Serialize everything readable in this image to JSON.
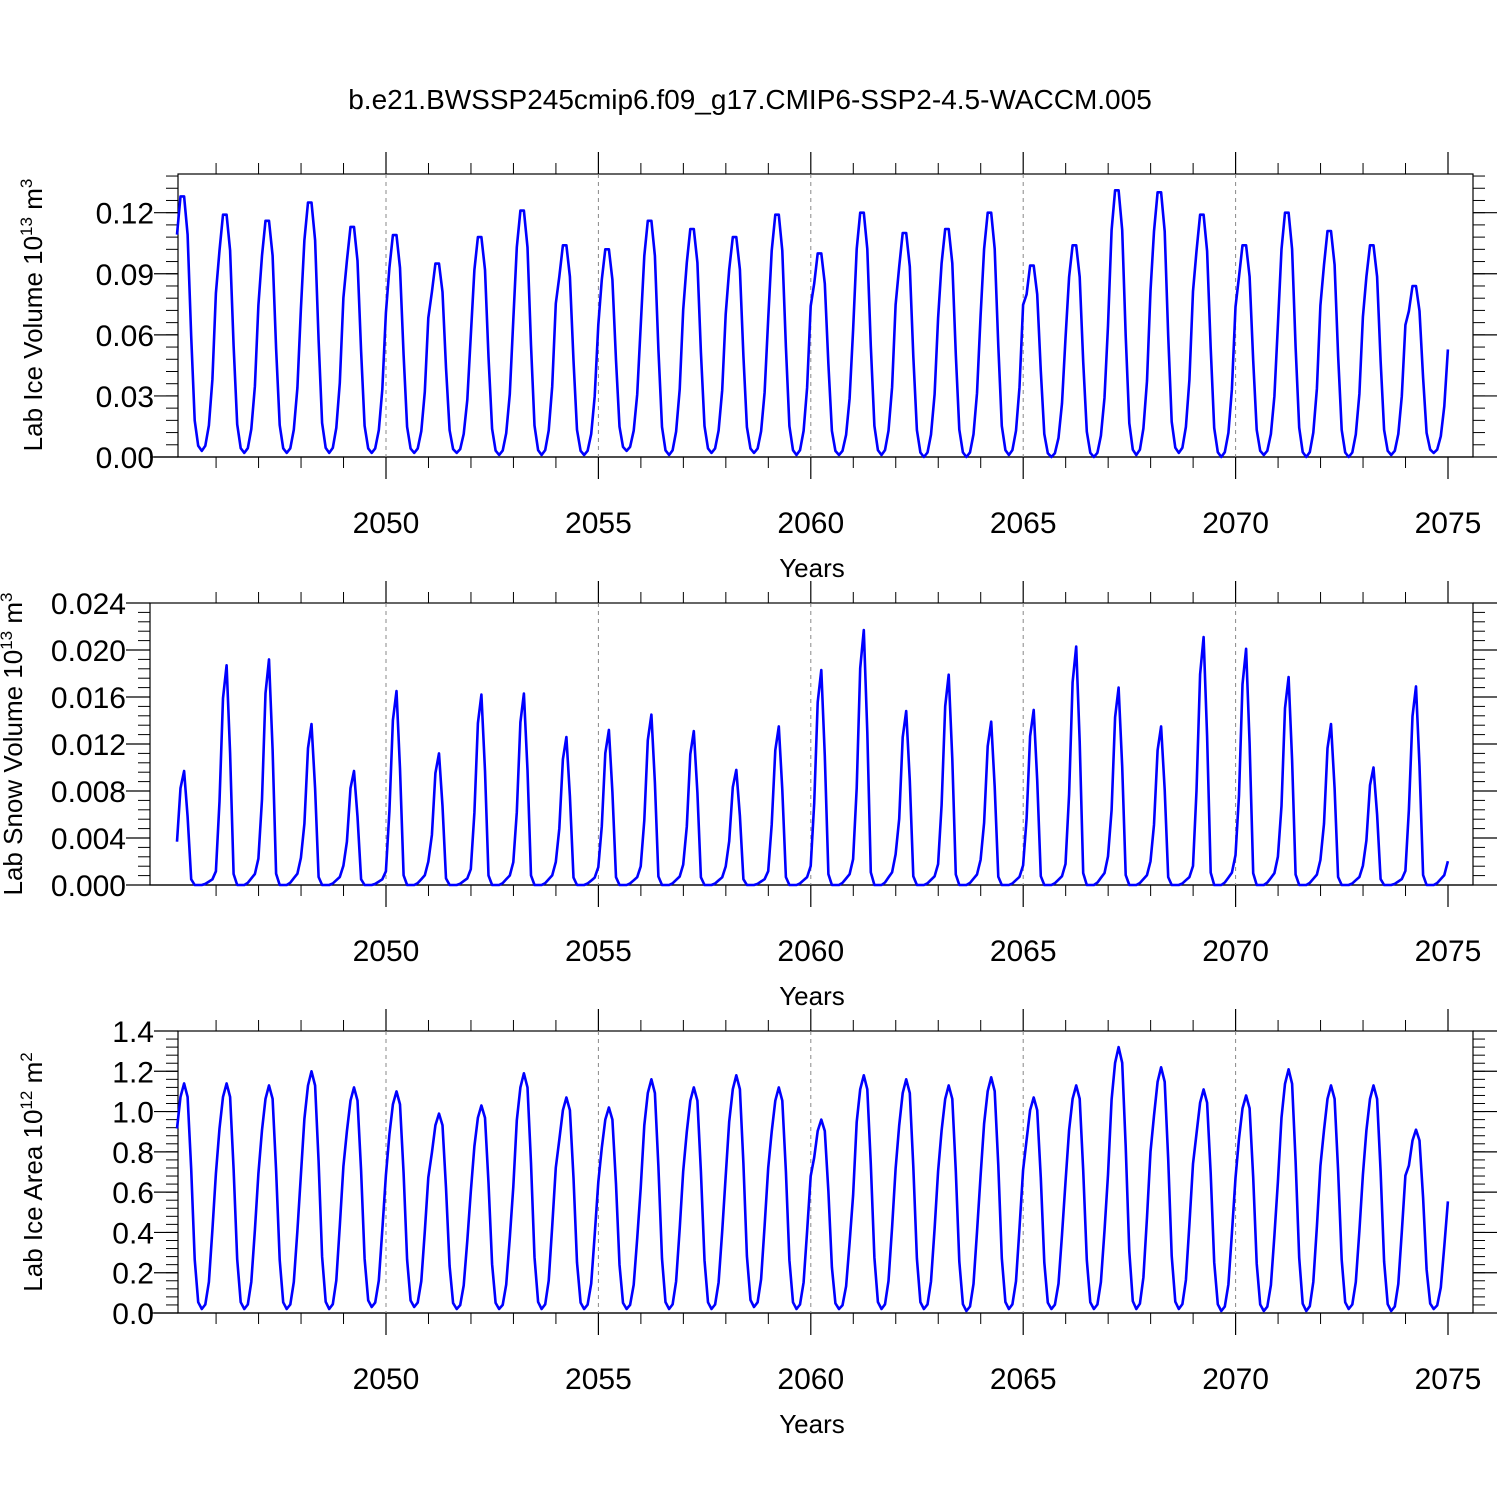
{
  "figure": {
    "title": "b.e21.BWSSP245cmip6.f09_g17.CMIP6-SSP2-4.5-WACCM.005"
  },
  "chart_data": [
    {
      "type": "line",
      "xlabel": "Years",
      "ylabel": "Lab Ice Volume 10",
      "ylabel_exp": "13",
      "ylabel_unit": " m",
      "ylabel_unit_exp": "3",
      "xlim": [
        2045.08,
        2075.0
      ],
      "ylim": [
        0.0,
        0.139
      ],
      "yticks": [
        0.0,
        0.03,
        0.06,
        0.09,
        0.12
      ],
      "ytick_labels": [
        "0.00",
        "0.03",
        "0.06",
        "0.09",
        "0.12"
      ],
      "xticks": [
        2050,
        2055,
        2060,
        2065,
        2070,
        2075
      ],
      "xtick_labels": [
        "2050",
        "2055",
        "2060",
        "2065",
        "2070",
        "2075"
      ],
      "grid": "dashed vertical at 5-year ticks",
      "line_color": "#0000ff",
      "peaks": [
        0.128,
        0.119,
        0.116,
        0.125,
        0.113,
        0.109,
        0.095,
        0.108,
        0.121,
        0.104,
        0.102,
        0.116,
        0.112,
        0.108,
        0.119,
        0.1,
        0.12,
        0.11,
        0.112,
        0.12,
        0.094,
        0.104,
        0.131,
        0.13,
        0.119,
        0.104,
        0.12,
        0.111,
        0.104,
        0.084
      ],
      "troughs": [
        0.003,
        0.002,
        0.002,
        0.002,
        0.002,
        0.002,
        0.002,
        0.001,
        0.001,
        0.001,
        0.003,
        0.001,
        0.002,
        0.002,
        0.001,
        0.001,
        0.001,
        0.0,
        0.0,
        0.001,
        0.0,
        0.0,
        0.001,
        0.002,
        0.0,
        0.001,
        0.0,
        0.0,
        0.001,
        0.002
      ]
    },
    {
      "type": "line",
      "xlabel": "Years",
      "ylabel": "Lab Snow Volume 10",
      "ylabel_exp": "13",
      "ylabel_unit": " m",
      "ylabel_unit_exp": "3",
      "xlim": [
        2045.08,
        2075.0
      ],
      "ylim": [
        0.0,
        0.024
      ],
      "yticks": [
        0.0,
        0.004,
        0.008,
        0.012,
        0.016,
        0.02,
        0.024
      ],
      "ytick_labels": [
        "0.000",
        "0.004",
        "0.008",
        "0.012",
        "0.016",
        "0.020",
        "0.024"
      ],
      "xticks": [
        2050,
        2055,
        2060,
        2065,
        2070,
        2075
      ],
      "xtick_labels": [
        "2050",
        "2055",
        "2060",
        "2065",
        "2070",
        "2075"
      ],
      "grid": "dashed vertical at 5-year ticks",
      "line_color": "#0000ff",
      "peaks": [
        0.0097,
        0.0187,
        0.0192,
        0.0137,
        0.0097,
        0.0165,
        0.0112,
        0.0162,
        0.0163,
        0.0126,
        0.0132,
        0.0145,
        0.0131,
        0.0098,
        0.0135,
        0.0183,
        0.0217,
        0.0148,
        0.0179,
        0.0139,
        0.0149,
        0.0203,
        0.0168,
        0.0135,
        0.0211,
        0.0201,
        0.0177,
        0.0137,
        0.01,
        0.0169
      ],
      "troughs": [
        0.0,
        0.0,
        0.0,
        0.0,
        0.0,
        0.0,
        0.0,
        0.0,
        0.0,
        0.0,
        0.0,
        0.0,
        0.0,
        0.0,
        0.0,
        0.0,
        0.0,
        0.0,
        0.0,
        0.0,
        0.0,
        0.0,
        0.0,
        0.0,
        0.0,
        0.0,
        0.0,
        0.0,
        0.0,
        0.0
      ]
    },
    {
      "type": "line",
      "xlabel": "Years",
      "ylabel": "Lab Ice Area 10",
      "ylabel_exp": "12",
      "ylabel_unit": " m",
      "ylabel_unit_exp": "2",
      "xlim": [
        2045.08,
        2075.0
      ],
      "ylim": [
        0.0,
        1.4
      ],
      "yticks": [
        0.0,
        0.2,
        0.4,
        0.6,
        0.8,
        1.0,
        1.2,
        1.4
      ],
      "ytick_labels": [
        "0.0",
        "0.2",
        "0.4",
        "0.6",
        "0.8",
        "1.0",
        "1.2",
        "1.4"
      ],
      "xticks": [
        2050,
        2055,
        2060,
        2065,
        2070,
        2075
      ],
      "xtick_labels": [
        "2050",
        "2055",
        "2060",
        "2065",
        "2070",
        "2075"
      ],
      "grid": "dashed vertical at 5-year ticks",
      "line_color": "#0000ff",
      "peaks": [
        1.14,
        1.14,
        1.13,
        1.2,
        1.12,
        1.1,
        0.99,
        1.03,
        1.19,
        1.07,
        1.02,
        1.16,
        1.12,
        1.18,
        1.12,
        0.96,
        1.18,
        1.16,
        1.13,
        1.17,
        1.07,
        1.13,
        1.32,
        1.22,
        1.11,
        1.08,
        1.21,
        1.13,
        1.13,
        0.91
      ],
      "troughs": [
        0.02,
        0.02,
        0.02,
        0.02,
        0.03,
        0.03,
        0.02,
        0.02,
        0.02,
        0.02,
        0.02,
        0.02,
        0.02,
        0.03,
        0.02,
        0.02,
        0.02,
        0.02,
        0.01,
        0.02,
        0.02,
        0.02,
        0.02,
        0.02,
        0.01,
        0.01,
        0.01,
        0.02,
        0.01,
        0.02
      ]
    }
  ]
}
